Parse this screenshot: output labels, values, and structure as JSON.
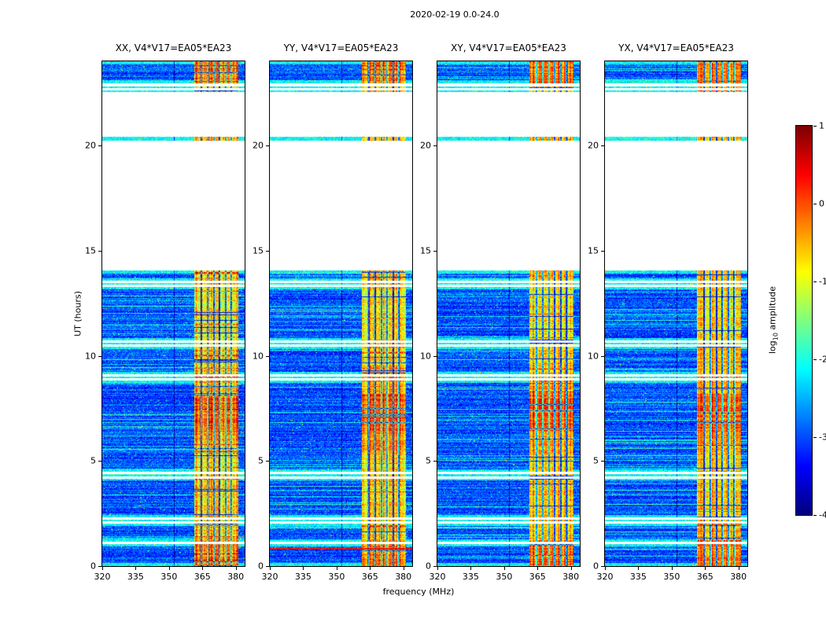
{
  "figure": {
    "title": "2020-02-19 0.0-24.0",
    "xlabel": "frequency (MHz)",
    "ylabel": "UT (hours)"
  },
  "panels": [
    {
      "id": "XX",
      "title": "XX, V4*V17=EA05*EA23"
    },
    {
      "id": "YY",
      "title": "YY, V4*V17=EA05*EA23",
      "hot_rows": [
        0.82
      ]
    },
    {
      "id": "XY",
      "title": "XY, V4*V17=EA05*EA23"
    },
    {
      "id": "YX",
      "title": "YX, V4*V17=EA05*EA23"
    }
  ],
  "axes": {
    "x_ticks": [
      320,
      335,
      350,
      365,
      380
    ],
    "x_range": [
      320,
      384
    ],
    "y_ticks": [
      0,
      5,
      10,
      15,
      20
    ],
    "y_range": [
      0,
      24
    ]
  },
  "colorbar": {
    "label_prefix": "log",
    "label_sub": "10",
    "label_suffix": " amplitude",
    "ticks": [
      1,
      0,
      -1,
      -2,
      -3,
      -4
    ],
    "range": [
      -4,
      1
    ],
    "colormap": "jet"
  },
  "chart_data": {
    "type": "heatmap",
    "title": "2020-02-19 0.0-24.0",
    "xlabel": "frequency (MHz)",
    "ylabel": "UT (hours)",
    "x_range_mhz": [
      320,
      384
    ],
    "y_range_hours": [
      0,
      24
    ],
    "panels": [
      "XX, V4*V17=EA05*EA23",
      "YY, V4*V17=EA05*EA23",
      "XY, V4*V17=EA05*EA23",
      "YX, V4*V17=EA05*EA23"
    ],
    "colorbar": {
      "label": "log10 amplitude",
      "range": [
        -4,
        1
      ],
      "ticks": [
        -4,
        -3,
        -2,
        -1,
        0,
        1
      ],
      "colormap": "jet"
    },
    "background_level_log10": [
      -3.5,
      -2.6
    ],
    "rfi_band_mhz": [
      361.5,
      381.2
    ],
    "band_level_log10": [
      -1.5,
      0.8
    ],
    "time_segments_hours": [
      [
        0,
        14.05
      ],
      [
        20.22,
        20.42
      ],
      [
        22.55,
        22.63
      ],
      [
        22.72,
        22.8
      ],
      [
        22.95,
        24
      ]
    ],
    "gap_times_hours": [
      1.1,
      2.08,
      2.26,
      4.22,
      4.42,
      8.88,
      9.08,
      10.48,
      10.68,
      13.32,
      13.52
    ],
    "band_intensity_blocks": [
      [
        0,
        1.25,
        0.75
      ],
      [
        1.25,
        2.1,
        0.35
      ],
      [
        2.1,
        4.25,
        0.3
      ],
      [
        4.25,
        5.3,
        0.15
      ],
      [
        5.3,
        6.4,
        0.5
      ],
      [
        6.4,
        8.2,
        0.85
      ],
      [
        8.2,
        9.1,
        0.5
      ],
      [
        9.1,
        10.55,
        0.3
      ],
      [
        10.55,
        13.35,
        0.1
      ],
      [
        13.35,
        14.05,
        0.35
      ],
      [
        20.2,
        20.45,
        0.35
      ],
      [
        22.5,
        22.85,
        0.3
      ],
      [
        22.95,
        24,
        0.7
      ]
    ],
    "flagged_freqs_mhz": [
      364.2,
      367.0,
      369.8,
      372.3,
      375.1,
      377.8
    ],
    "background_dark_line_mhz": 352.3
  }
}
